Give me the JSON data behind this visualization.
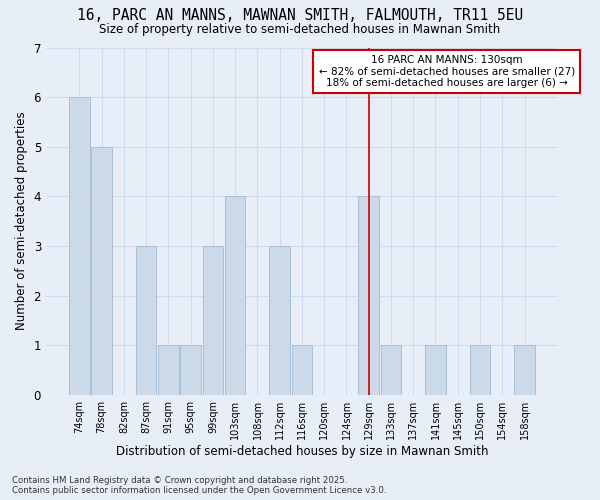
{
  "title_line1": "16, PARC AN MANNS, MAWNAN SMITH, FALMOUTH, TR11 5EU",
  "title_line2": "Size of property relative to semi-detached houses in Mawnan Smith",
  "categories": [
    "74sqm",
    "78sqm",
    "82sqm",
    "87sqm",
    "91sqm",
    "95sqm",
    "99sqm",
    "103sqm",
    "108sqm",
    "112sqm",
    "116sqm",
    "120sqm",
    "124sqm",
    "129sqm",
    "133sqm",
    "137sqm",
    "141sqm",
    "145sqm",
    "150sqm",
    "154sqm",
    "158sqm"
  ],
  "values": [
    6,
    5,
    0,
    3,
    1,
    1,
    3,
    4,
    0,
    3,
    1,
    0,
    0,
    4,
    1,
    0,
    1,
    0,
    1,
    0,
    1
  ],
  "bar_color": "#ccd9e8",
  "bar_edge_color": "#a8c0d8",
  "xlabel": "Distribution of semi-detached houses by size in Mawnan Smith",
  "ylabel": "Number of semi-detached properties",
  "ylim": [
    0,
    7
  ],
  "yticks": [
    0,
    1,
    2,
    3,
    4,
    5,
    6,
    7
  ],
  "marker_index": 13,
  "marker_color": "#cc0000",
  "annotation_title": "16 PARC AN MANNS: 130sqm",
  "annotation_line1": "← 82% of semi-detached houses are smaller (27)",
  "annotation_line2": "18% of semi-detached houses are larger (6) →",
  "annotation_box_color": "#cc0000",
  "footer_line1": "Contains HM Land Registry data © Crown copyright and database right 2025.",
  "footer_line2": "Contains public sector information licensed under the Open Government Licence v3.0.",
  "background_color": "#e8eef8",
  "grid_color": "#d0dcee"
}
